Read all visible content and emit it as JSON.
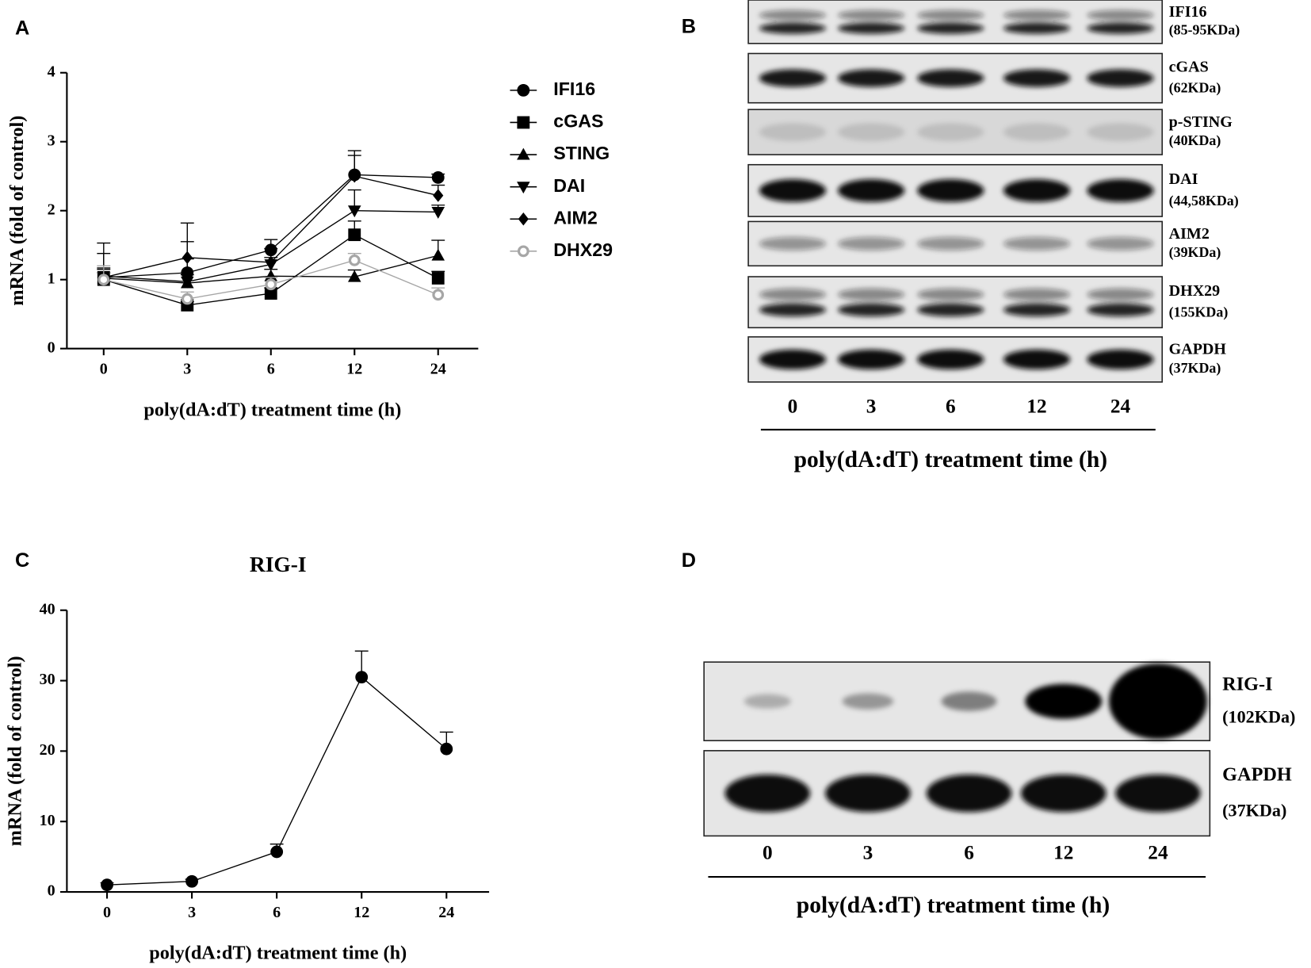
{
  "panels": [
    "A",
    "B",
    "C",
    "D"
  ],
  "chart_data": [
    {
      "type": "line",
      "ylabel": "mRNA (fold of control)",
      "xlabel": "poly(dA:dT) treatment time (h)",
      "categories": [
        "0",
        "3",
        "6",
        "12",
        "24"
      ],
      "ylim": [
        0,
        4
      ],
      "yticks": [
        0,
        1,
        2,
        3,
        4
      ],
      "legend": "right",
      "series": [
        {
          "name": "IFI16",
          "color": "#000000",
          "marker": "circle",
          "values": [
            1.03,
            1.1,
            1.43,
            2.52,
            2.48
          ],
          "errors": [
            0.35,
            0.2,
            0.15,
            0.35,
            0.05
          ]
        },
        {
          "name": "cGAS",
          "color": "#000000",
          "marker": "square",
          "values": [
            1.0,
            0.63,
            0.8,
            1.65,
            1.02
          ],
          "errors": [
            0.1,
            0.05,
            0.08,
            0.2,
            0.1
          ]
        },
        {
          "name": "STING",
          "color": "#000000",
          "marker": "triangle-up",
          "values": [
            1.02,
            0.95,
            1.05,
            1.04,
            1.35
          ],
          "errors": [
            0.15,
            0.6,
            0.1,
            0.1,
            0.22
          ]
        },
        {
          "name": "DAI",
          "color": "#000000",
          "marker": "triangle-down",
          "values": [
            1.05,
            0.97,
            1.22,
            2.0,
            1.98
          ],
          "errors": [
            0.1,
            0.1,
            0.1,
            0.3,
            0.1
          ]
        },
        {
          "name": "AIM2",
          "color": "#000000",
          "marker": "diamond",
          "values": [
            1.03,
            1.32,
            1.25,
            2.5,
            2.22
          ],
          "errors": [
            0.5,
            0.5,
            0.2,
            0.3,
            0.15
          ]
        },
        {
          "name": "DHX29",
          "color": "#a6a6a6",
          "marker": "open-circle",
          "values": [
            1.0,
            0.72,
            0.93,
            1.28,
            0.78
          ],
          "errors": [
            0.2,
            0.1,
            0.1,
            0.1,
            0.1
          ]
        }
      ]
    },
    {
      "type": "line",
      "title": "RIG-I",
      "ylabel": "mRNA (fold of control)",
      "xlabel": "poly(dA:dT) treatment time (h)",
      "categories": [
        "0",
        "3",
        "6",
        "12",
        "24"
      ],
      "ylim": [
        0,
        40
      ],
      "yticks": [
        0,
        10,
        20,
        30,
        40
      ],
      "color": "#000000",
      "marker": "circle",
      "values": [
        1.0,
        1.5,
        5.7,
        30.5,
        20.3
      ],
      "errors": [
        0.3,
        0.3,
        1.1,
        3.7,
        2.4
      ]
    }
  ],
  "blots": [
    {
      "rows": [
        {
          "protein": "IFI16",
          "size": "(85-95KDa)"
        },
        {
          "protein": "cGAS",
          "size": "(62KDa)"
        },
        {
          "protein": "p-STING",
          "size": "(40KDa)"
        },
        {
          "protein": "DAI",
          "size": "(44,58KDa)"
        },
        {
          "protein": "AIM2",
          "size": "(39KDa)"
        },
        {
          "protein": "DHX29",
          "size": "(155KDa)"
        },
        {
          "protein": "GAPDH",
          "size": "(37KDa)"
        }
      ],
      "lanes": [
        "0",
        "3",
        "6",
        "12",
        "24"
      ],
      "xlabel": "poly(dA:dT) treatment time (h)"
    },
    {
      "rows": [
        {
          "protein": "RIG-I",
          "size": "(102KDa)"
        },
        {
          "protein": "GAPDH",
          "size": "(37KDa)"
        }
      ],
      "lanes": [
        "0",
        "3",
        "6",
        "12",
        "24"
      ],
      "xlabel": "poly(dA:dT) treatment time (h)"
    }
  ]
}
